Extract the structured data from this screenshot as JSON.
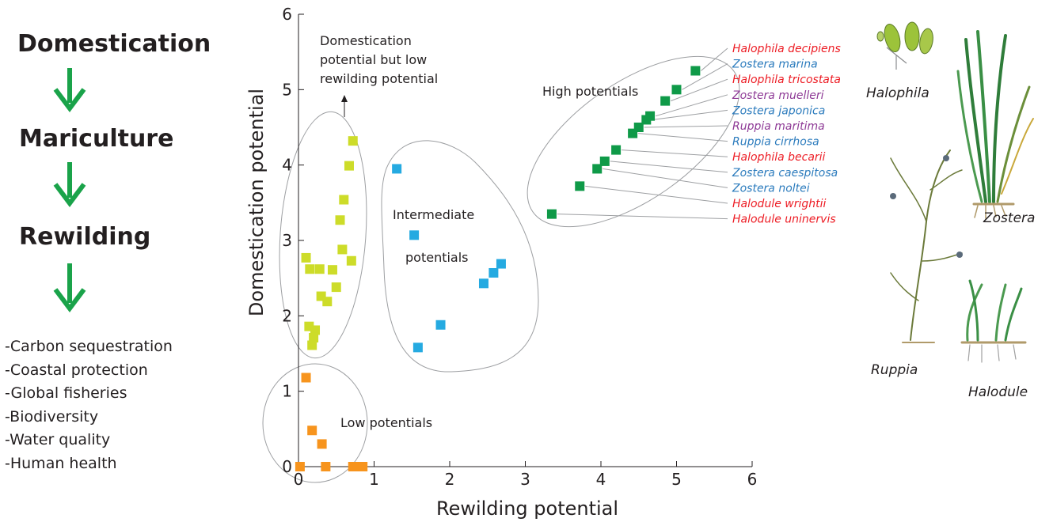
{
  "flow": {
    "steps": [
      "Domestication",
      "Mariculture",
      "Rewilding"
    ],
    "benefits": [
      "-Carbon sequestration",
      "-Coastal protection",
      "-Global fisheries",
      "-Biodiversity",
      "-Water quality",
      "-Human health"
    ],
    "arrow_color": "#1aa34a"
  },
  "chart_data": {
    "type": "scatter",
    "xlabel": "Rewilding potential",
    "ylabel": "Domestication potential",
    "xlim": [
      0,
      6
    ],
    "ylim": [
      0,
      6
    ],
    "xticks": [
      0,
      1,
      2,
      3,
      4,
      5,
      6
    ],
    "yticks": [
      0,
      1,
      2,
      3,
      4,
      5,
      6
    ],
    "grid": false,
    "groups": [
      {
        "label": "Domestication potential but low rewilding potential",
        "color": "#cddc29",
        "points": [
          [
            0.1,
            2.77
          ],
          [
            0.15,
            2.62
          ],
          [
            0.28,
            2.62
          ],
          [
            0.45,
            2.61
          ],
          [
            0.58,
            2.88
          ],
          [
            0.55,
            3.27
          ],
          [
            0.6,
            3.54
          ],
          [
            0.67,
            3.99
          ],
          [
            0.72,
            4.32
          ],
          [
            0.7,
            2.73
          ],
          [
            0.5,
            2.38
          ],
          [
            0.3,
            2.26
          ],
          [
            0.38,
            2.19
          ],
          [
            0.14,
            1.86
          ],
          [
            0.22,
            1.81
          ],
          [
            0.2,
            1.71
          ],
          [
            0.18,
            1.61
          ]
        ]
      },
      {
        "label": "Intermediate potentials",
        "color": "#25aae1",
        "points": [
          [
            1.3,
            3.95
          ],
          [
            1.53,
            3.07
          ],
          [
            2.68,
            2.69
          ],
          [
            2.58,
            2.57
          ],
          [
            2.45,
            2.43
          ],
          [
            1.88,
            1.88
          ],
          [
            1.58,
            1.58
          ]
        ]
      },
      {
        "label": "High potentials",
        "color": "#0f9a48",
        "points": [
          [
            5.25,
            5.25
          ],
          [
            5.0,
            5.0
          ],
          [
            4.85,
            4.85
          ],
          [
            4.65,
            4.65
          ],
          [
            4.6,
            4.6
          ],
          [
            4.5,
            4.5
          ],
          [
            4.42,
            4.42
          ],
          [
            4.2,
            4.2
          ],
          [
            4.05,
            4.05
          ],
          [
            3.95,
            3.95
          ],
          [
            3.72,
            3.72
          ],
          [
            3.35,
            3.35
          ]
        ]
      },
      {
        "label": "Low potentials",
        "color": "#f7941d",
        "points": [
          [
            0.1,
            1.18
          ],
          [
            0.18,
            0.48
          ],
          [
            0.31,
            0.3
          ],
          [
            0.02,
            0.0
          ],
          [
            0.36,
            0.0
          ],
          [
            0.72,
            0.0
          ],
          [
            0.78,
            0.0
          ],
          [
            0.85,
            0.0
          ]
        ]
      }
    ],
    "species": [
      {
        "name": "Halophila decipiens",
        "color": "#ed1c24"
      },
      {
        "name": "Zostera marina",
        "color": "#2b7bbd"
      },
      {
        "name": "Halophila tricostata",
        "color": "#ed1c24"
      },
      {
        "name": "Zostera muelleri",
        "color": "#8e3a96"
      },
      {
        "name": "Zostera japonica",
        "color": "#2b7bbd"
      },
      {
        "name": "Ruppia maritima",
        "color": "#8e3a96"
      },
      {
        "name": "Ruppia cirrhosa",
        "color": "#2b7bbd"
      },
      {
        "name": "Halophila becarii",
        "color": "#ed1c24"
      },
      {
        "name": "Zostera caespitosa",
        "color": "#2b7bbd"
      },
      {
        "name": "Zostera noltei",
        "color": "#2b7bbd"
      },
      {
        "name": "Halodule wrightii",
        "color": "#ed1c24"
      },
      {
        "name": "Halodule uninervis",
        "color": "#ed1c24"
      }
    ]
  },
  "plants": [
    "Halophila",
    "Zostera",
    "Ruppia",
    "Halodule"
  ]
}
